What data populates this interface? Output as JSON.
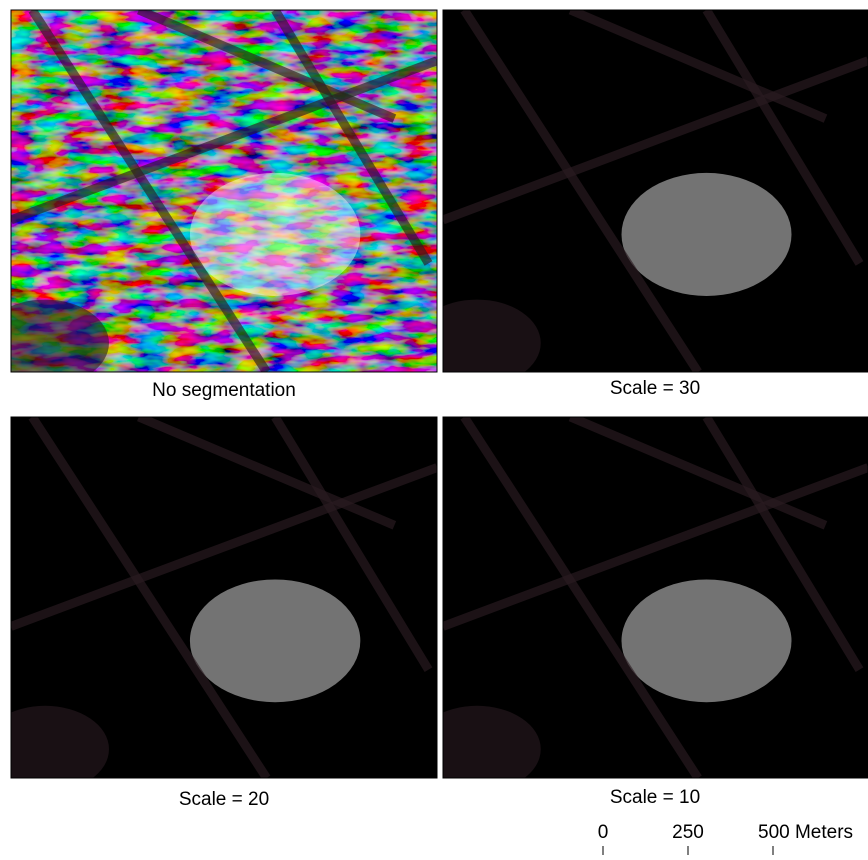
{
  "panels": [
    {
      "caption": "No segmentation"
    },
    {
      "caption": "Scale = 30"
    },
    {
      "caption": "Scale = 20"
    },
    {
      "caption": "Scale = 10"
    }
  ],
  "scale_bar": {
    "labels": [
      "0",
      "250",
      "500 Meters"
    ]
  }
}
